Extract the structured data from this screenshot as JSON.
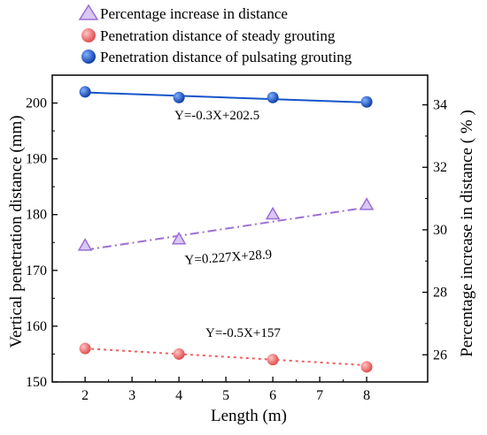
{
  "chart_data": {
    "type": "line",
    "x": [
      2,
      4,
      6,
      8
    ],
    "xlabel": "Length (m)",
    "ylabel": "Vertical penetration distance (mm)",
    "ylabel_right": "Percentage increase in distance ( % )",
    "xlim": [
      1.3,
      9.3
    ],
    "ylim": [
      150,
      205
    ],
    "ylim_right": [
      25.13,
      34.95
    ],
    "xticks": [
      "2",
      "3",
      "4",
      "5",
      "6",
      "7",
      "8"
    ],
    "yticks": [
      "150",
      "160",
      "170",
      "180",
      "190",
      "200"
    ],
    "yticks_right": [
      "26",
      "28",
      "30",
      "32",
      "34"
    ],
    "legend_position": "top-left",
    "series": [
      {
        "name": "Percentage increase in distance",
        "axis": "right",
        "values": [
          29.5,
          29.7,
          30.5,
          30.8
        ],
        "marker": "triangle",
        "color": "#9B6FD6",
        "fit": {
          "equation": "Y=0.227X+28.9",
          "slope": 0.227,
          "intercept": 28.9,
          "style": "dashdot"
        }
      },
      {
        "name": "Penetration distance of steady grouting",
        "axis": "left",
        "values": [
          156,
          155,
          154,
          152.7
        ],
        "marker": "circle",
        "color": "#F06060",
        "fit": {
          "equation": "Y=-0.5X+157",
          "slope": -0.5,
          "intercept": 157,
          "style": "dotted"
        }
      },
      {
        "name": "Penetration distance of pulsating grouting",
        "axis": "left",
        "values": [
          202,
          201,
          201,
          200.2
        ],
        "marker": "circle",
        "color": "#1555C8",
        "fit": {
          "equation": "Y=-0.3X+202.5",
          "slope": -0.3,
          "intercept": 202.5,
          "style": "solid"
        }
      }
    ]
  }
}
